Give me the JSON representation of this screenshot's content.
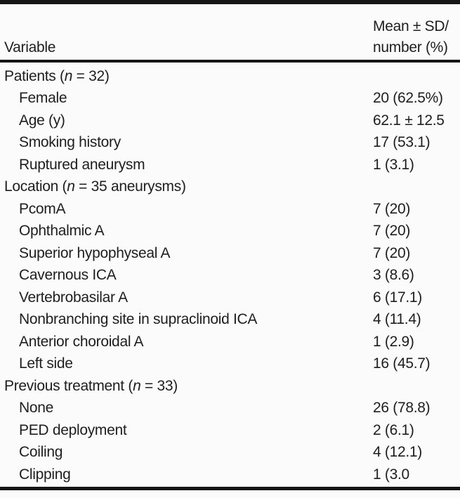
{
  "page": {
    "background": "#fbfbfb",
    "text_color": "#1e1e1e",
    "rule_color": "#161616"
  },
  "table": {
    "header": {
      "variable_label": "Variable",
      "value_col_line1": "Mean ± SD/",
      "value_col_line2": "number (%)"
    },
    "rows": [
      {
        "indent": 0,
        "label": [
          {
            "t": "Patients ("
          },
          {
            "t": "n",
            "i": true
          },
          {
            "t": " = 32)"
          }
        ],
        "value": ""
      },
      {
        "indent": 1,
        "label": [
          {
            "t": "Female"
          }
        ],
        "value": "20 (62.5%)"
      },
      {
        "indent": 1,
        "label": [
          {
            "t": "Age (y)"
          }
        ],
        "value": "62.1 ± 12.5"
      },
      {
        "indent": 1,
        "label": [
          {
            "t": "Smoking history"
          }
        ],
        "value": "17 (53.1)"
      },
      {
        "indent": 1,
        "label": [
          {
            "t": "Ruptured aneurysm"
          }
        ],
        "value": "1 (3.1)"
      },
      {
        "indent": 0,
        "label": [
          {
            "t": "Location ("
          },
          {
            "t": "n",
            "i": true
          },
          {
            "t": " = 35 aneurysms)"
          }
        ],
        "value": ""
      },
      {
        "indent": 1,
        "label": [
          {
            "t": "PcomA"
          }
        ],
        "value": "7 (20)"
      },
      {
        "indent": 1,
        "label": [
          {
            "t": "Ophthalmic A"
          }
        ],
        "value": "7 (20)"
      },
      {
        "indent": 1,
        "label": [
          {
            "t": "Superior hypophyseal A"
          }
        ],
        "value": "7 (20)"
      },
      {
        "indent": 1,
        "label": [
          {
            "t": "Cavernous ICA"
          }
        ],
        "value": "3 (8.6)"
      },
      {
        "indent": 1,
        "label": [
          {
            "t": "Vertebrobasilar A"
          }
        ],
        "value": "6 (17.1)"
      },
      {
        "indent": 1,
        "label": [
          {
            "t": "Nonbranching site in supraclinoid ICA"
          }
        ],
        "value": "4 (11.4)"
      },
      {
        "indent": 1,
        "label": [
          {
            "t": "Anterior choroidal A"
          }
        ],
        "value": "1 (2.9)"
      },
      {
        "indent": 1,
        "label": [
          {
            "t": "Left side"
          }
        ],
        "value": "16 (45.7)"
      },
      {
        "indent": 0,
        "label": [
          {
            "t": "Previous treatment ("
          },
          {
            "t": "n",
            "i": true
          },
          {
            "t": " = 33)"
          }
        ],
        "value": ""
      },
      {
        "indent": 1,
        "label": [
          {
            "t": "None"
          }
        ],
        "value": "26 (78.8)"
      },
      {
        "indent": 1,
        "label": [
          {
            "t": "PED deployment"
          }
        ],
        "value": "2 (6.1)"
      },
      {
        "indent": 1,
        "label": [
          {
            "t": "Coiling"
          }
        ],
        "value": "4 (12.1)"
      },
      {
        "indent": 1,
        "label": [
          {
            "t": "Clipping"
          }
        ],
        "value": "1 (3.0"
      }
    ]
  }
}
